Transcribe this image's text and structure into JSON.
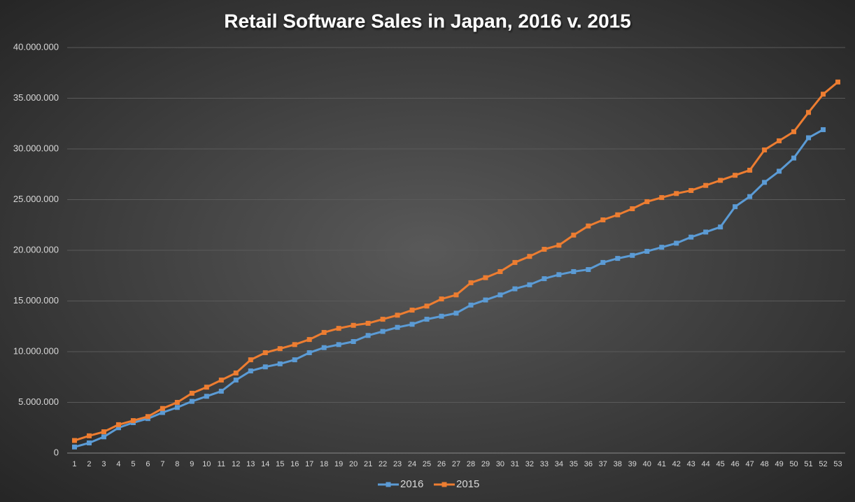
{
  "chart_data": {
    "type": "line",
    "title": "Retail Software Sales in Japan, 2016 v. 2015",
    "categories": [
      "1",
      "2",
      "3",
      "4",
      "5",
      "6",
      "7",
      "8",
      "9",
      "10",
      "11",
      "12",
      "13",
      "14",
      "15",
      "16",
      "17",
      "18",
      "19",
      "20",
      "21",
      "22",
      "23",
      "24",
      "25",
      "26",
      "27",
      "28",
      "29",
      "30",
      "31",
      "32",
      "33",
      "34",
      "35",
      "36",
      "37",
      "38",
      "39",
      "40",
      "41",
      "42",
      "43",
      "44",
      "45",
      "46",
      "47",
      "48",
      "49",
      "50",
      "51",
      "52",
      "53"
    ],
    "series": [
      {
        "name": "2016",
        "color": "#5b9bd5",
        "values": [
          600000,
          1000000,
          1600000,
          2500000,
          3000000,
          3400000,
          4000000,
          4500000,
          5100000,
          5600000,
          6100000,
          7200000,
          8100000,
          8500000,
          8800000,
          9200000,
          9900000,
          10400000,
          10700000,
          11000000,
          11600000,
          12000000,
          12400000,
          12700000,
          13200000,
          13500000,
          13800000,
          14600000,
          15100000,
          15600000,
          16200000,
          16600000,
          17200000,
          17600000,
          17900000,
          18100000,
          18800000,
          19200000,
          19500000,
          19900000,
          20300000,
          20700000,
          21300000,
          21800000,
          22300000,
          24300000,
          25300000,
          26700000,
          27800000,
          29100000,
          31100000,
          31900000,
          null
        ]
      },
      {
        "name": "2015",
        "color": "#ed7d31",
        "values": [
          1240000,
          1700000,
          2100000,
          2800000,
          3200000,
          3600000,
          4400000,
          5000000,
          5900000,
          6500000,
          7200000,
          7900000,
          9200000,
          9900000,
          10300000,
          10700000,
          11200000,
          11900000,
          12300000,
          12600000,
          12800000,
          13200000,
          13600000,
          14100000,
          14500000,
          15200000,
          15600000,
          16800000,
          17300000,
          17900000,
          18800000,
          19400000,
          20100000,
          20500000,
          21500000,
          22400000,
          23000000,
          23500000,
          24100000,
          24800000,
          25200000,
          25600000,
          25900000,
          26400000,
          26900000,
          27400000,
          27900000,
          29900000,
          30800000,
          31700000,
          33600000,
          35400000,
          36600000
        ]
      }
    ],
    "ylim": [
      0,
      40000000
    ],
    "yticks": [
      0,
      {
        "value": 5000000,
        "label": "5.000.000"
      },
      {
        "value": 10000000,
        "label": "10.000.000"
      },
      {
        "value": 15000000,
        "label": "15.000.000"
      },
      {
        "value": 20000000,
        "label": "20.000.000"
      },
      {
        "value": 25000000,
        "label": "25.000.000"
      },
      {
        "value": 30000000,
        "label": "30.000.000"
      },
      {
        "value": 35000000,
        "label": "35.000.000"
      },
      {
        "value": 40000000,
        "label": "40.000.000"
      }
    ],
    "grid": true,
    "legend": "bottom"
  }
}
